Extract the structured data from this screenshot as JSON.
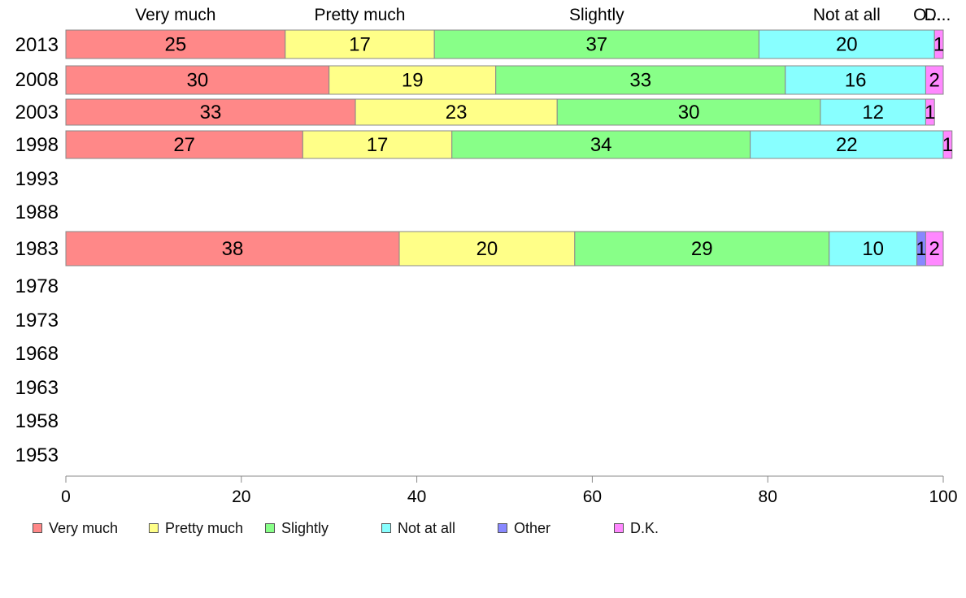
{
  "chart_data": {
    "type": "bar",
    "orientation": "horizontal",
    "stacked": true,
    "categories": [
      "2013",
      "2008",
      "2003",
      "1998",
      "1993",
      "1988",
      "1983",
      "1978",
      "1973",
      "1968",
      "1963",
      "1958",
      "1953"
    ],
    "series": [
      {
        "name": "Very much",
        "color": "#ff8888",
        "values": [
          25,
          30,
          33,
          27,
          null,
          null,
          38,
          null,
          null,
          null,
          null,
          null,
          null
        ]
      },
      {
        "name": "Pretty much",
        "color": "#ffff88",
        "values": [
          17,
          19,
          23,
          17,
          null,
          null,
          20,
          null,
          null,
          null,
          null,
          null,
          null
        ]
      },
      {
        "name": "Slightly",
        "color": "#88ff88",
        "values": [
          37,
          33,
          30,
          34,
          null,
          null,
          29,
          null,
          null,
          null,
          null,
          null,
          null
        ]
      },
      {
        "name": "Not at all",
        "color": "#88ffff",
        "values": [
          20,
          16,
          12,
          22,
          null,
          null,
          10,
          null,
          null,
          null,
          null,
          null,
          null
        ]
      },
      {
        "name": "Other",
        "color": "#8888ff",
        "values": [
          0,
          0,
          0,
          0,
          null,
          null,
          1,
          null,
          null,
          null,
          null,
          null,
          null
        ]
      },
      {
        "name": "D.K.",
        "color": "#ff88ff",
        "values": [
          1,
          2,
          1,
          1,
          null,
          null,
          2,
          null,
          null,
          null,
          null,
          null,
          null
        ]
      }
    ],
    "top_labels": [
      "Very much",
      "Pretty much",
      "Slightly",
      "Not at all",
      "O...",
      "D..."
    ],
    "xlim": [
      0,
      100
    ],
    "xticks": [
      "0",
      "20",
      "40",
      "60",
      "80",
      "100"
    ],
    "grid": false,
    "legend_position": "bottom"
  }
}
